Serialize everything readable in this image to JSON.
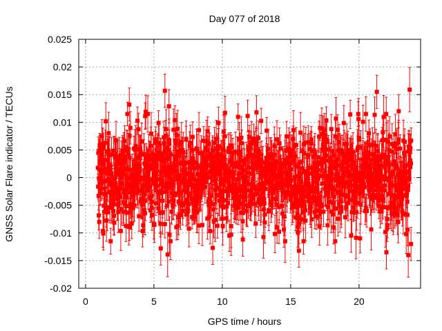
{
  "chart_data": {
    "type": "scatter",
    "title": "Day 077 of 2018",
    "xlabel": "GPS time / hours",
    "ylabel": "GNSS Solar Flare indicator / TECUs",
    "xlim": [
      -0.5,
      24.5
    ],
    "ylim": [
      -0.02,
      0.025
    ],
    "x_ticks": [
      0,
      5,
      10,
      15,
      20
    ],
    "x_tick_labels": [
      "0",
      "5",
      "10",
      "15",
      "20"
    ],
    "y_ticks": [
      -0.02,
      -0.015,
      -0.01,
      -0.005,
      0,
      0.005,
      0.01,
      0.015,
      0.02,
      0.025
    ],
    "y_tick_labels": [
      "-0.02",
      "-0.015",
      "-0.01",
      "-0.005",
      "0",
      "0.005",
      "0.01",
      "0.015",
      "0.02",
      "0.025"
    ],
    "grid": true,
    "series": [
      {
        "name": "GNSS Solar Flare indicator",
        "color": "#ff0000",
        "marker": "square",
        "error_bars": true,
        "x_range": [
          0.9,
          23.8
        ],
        "typical_value_range": [
          -0.008,
          0.008
        ],
        "typical_error": 0.003,
        "notable_points": [
          {
            "x": 5.8,
            "y": 0.0157,
            "err": 0.003
          },
          {
            "x": 3.2,
            "y": 0.0132,
            "err": 0.003
          },
          {
            "x": 21.3,
            "y": 0.0155,
            "err": 0.003
          },
          {
            "x": 23.7,
            "y": 0.0159,
            "err": 0.004
          },
          {
            "x": 6.1,
            "y": 0.0129,
            "err": 0.003
          },
          {
            "x": 10.2,
            "y": 0.0117,
            "err": 0.003
          },
          {
            "x": 12.5,
            "y": 0.0118,
            "err": 0.003
          },
          {
            "x": 4.4,
            "y": 0.0119,
            "err": 0.003
          },
          {
            "x": 15.6,
            "y": -0.0132,
            "err": 0.003
          },
          {
            "x": 6.0,
            "y": -0.0139,
            "err": 0.004
          },
          {
            "x": 5.5,
            "y": -0.0128,
            "err": 0.003
          },
          {
            "x": 22.0,
            "y": -0.0135,
            "err": 0.003
          },
          {
            "x": 23.6,
            "y": -0.014,
            "err": 0.004
          },
          {
            "x": 9.3,
            "y": -0.0127,
            "err": 0.003
          },
          {
            "x": 11.5,
            "y": -0.0112,
            "err": 0.003
          },
          {
            "x": 1.3,
            "y": -0.0101,
            "err": 0.003
          },
          {
            "x": 1.0,
            "y": -0.008,
            "err": 0.003
          },
          {
            "x": 23.8,
            "y": -0.012,
            "err": 0.003
          },
          {
            "x": 22.9,
            "y": 0.012,
            "err": 0.003
          },
          {
            "x": 1.2,
            "y": 0.0075,
            "err": 0.003
          }
        ]
      }
    ]
  }
}
